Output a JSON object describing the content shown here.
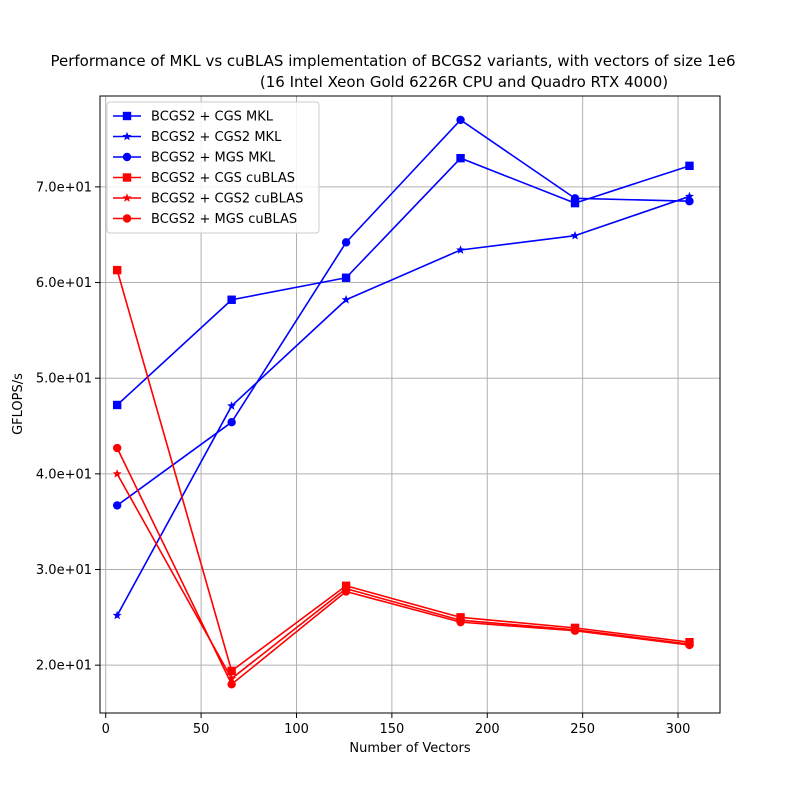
{
  "chart_data": {
    "type": "line",
    "title": "Performance of MKL vs cuBLAS implementation of BCGS2 variants, with vectors of size 1e6",
    "subtitle": "(16 Intel Xeon Gold 6226R CPU and Quadro RTX 4000)",
    "xlabel": "Number of Vectors",
    "ylabel": "GFLOPS/s",
    "xlim": [
      -3,
      322
    ],
    "ylim": [
      15.0,
      79.5
    ],
    "xticks": [
      0,
      50,
      100,
      150,
      200,
      250,
      300
    ],
    "yticks": [
      20,
      30,
      40,
      50,
      60,
      70
    ],
    "xtick_labels": [
      "0",
      "50",
      "100",
      "150",
      "200",
      "250",
      "300"
    ],
    "ytick_labels": [
      "2.0e+01",
      "3.0e+01",
      "4.0e+01",
      "5.0e+01",
      "6.0e+01",
      "7.0e+01"
    ],
    "grid": true,
    "legend_position": "top-left",
    "x": [
      6,
      66,
      126,
      186,
      246,
      306
    ],
    "series": [
      {
        "name": "BCGS2 + CGS MKL",
        "color": "#0000ff",
        "marker": "square",
        "values": [
          47.2,
          58.2,
          60.5,
          73.0,
          68.3,
          72.2
        ]
      },
      {
        "name": "BCGS2 + CGS2 MKL",
        "color": "#0000ff",
        "marker": "star",
        "values": [
          25.2,
          47.1,
          58.2,
          63.4,
          64.9,
          69.0
        ]
      },
      {
        "name": "BCGS2 + MGS MKL",
        "color": "#0000ff",
        "marker": "circle",
        "values": [
          36.7,
          45.4,
          64.2,
          77.0,
          68.8,
          68.5
        ]
      },
      {
        "name": "BCGS2 + CGS cuBLAS",
        "color": "#ff0000",
        "marker": "square",
        "values": [
          61.3,
          19.4,
          28.3,
          25.0,
          23.9,
          22.4
        ]
      },
      {
        "name": "BCGS2 + CGS2 cuBLAS",
        "color": "#ff0000",
        "marker": "star",
        "values": [
          40.0,
          18.6,
          28.0,
          24.7,
          23.7,
          22.2
        ]
      },
      {
        "name": "BCGS2 + MGS cuBLAS",
        "color": "#ff0000",
        "marker": "circle",
        "values": [
          42.7,
          18.0,
          27.7,
          24.5,
          23.6,
          22.1
        ]
      }
    ]
  }
}
